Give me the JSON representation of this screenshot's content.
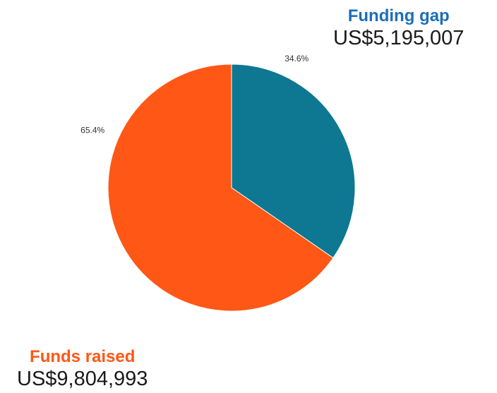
{
  "colors": {
    "funding_gap": "#0e7792",
    "funds_raised": "#ff5716",
    "gap_title": "#1c6fb8",
    "raised_title": "#ff5716"
  },
  "labels": {
    "funding_gap_title": "Funding gap",
    "funding_gap_amount": "US$5,195,007",
    "funds_raised_title": "Funds raised",
    "funds_raised_amount": "US$9,804,993"
  },
  "chart_data": {
    "type": "pie",
    "slices": [
      {
        "name": "Funding gap",
        "value": 5195007,
        "percent_label": "34.6%",
        "color": "#0e7792"
      },
      {
        "name": "Funds raised",
        "value": 9804993,
        "percent_label": "65.4%",
        "color": "#ff5716"
      }
    ],
    "title": "",
    "start": "top",
    "direction": "clockwise"
  }
}
